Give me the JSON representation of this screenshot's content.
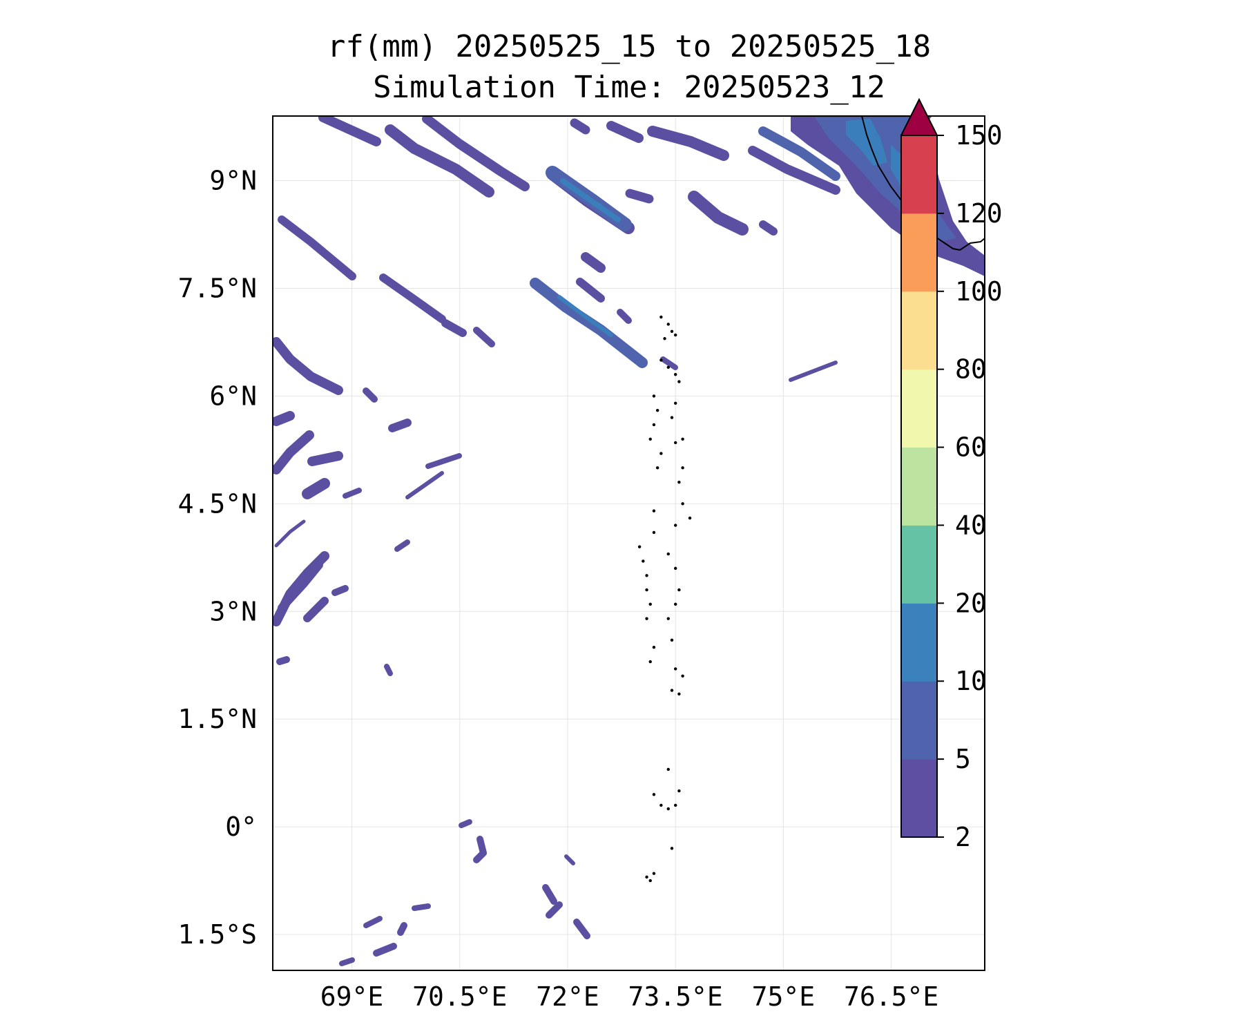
{
  "title": {
    "line1": "rf(mm) 20250525_15 to 20250525_18",
    "line2": "Simulation Time: 20250523_12"
  },
  "map": {
    "lat_range": [
      -2.0,
      9.9
    ],
    "lon_range": [
      67.9,
      77.8
    ],
    "lat_ticks": [
      {
        "value": 9.0,
        "label": "9°N"
      },
      {
        "value": 7.5,
        "label": "7.5°N"
      },
      {
        "value": 6.0,
        "label": "6°N"
      },
      {
        "value": 4.5,
        "label": "4.5°N"
      },
      {
        "value": 3.0,
        "label": "3°N"
      },
      {
        "value": 1.5,
        "label": "1.5°N"
      },
      {
        "value": 0.0,
        "label": "0°"
      },
      {
        "value": -1.5,
        "label": "1.5°S"
      }
    ],
    "lon_ticks": [
      {
        "value": 69.0,
        "label": "69°E"
      },
      {
        "value": 70.5,
        "label": "70.5°E"
      },
      {
        "value": 72.0,
        "label": "72°E"
      },
      {
        "value": 73.5,
        "label": "73.5°E"
      },
      {
        "value": 75.0,
        "label": "75°E"
      },
      {
        "value": 76.5,
        "label": "76.5°E"
      }
    ],
    "gridlines": true,
    "features": [
      "rain bands oriented NW-SE",
      "Maldives atolls dotted outline",
      "SW India coastline top-right"
    ]
  },
  "colorbar": {
    "extend": "max",
    "levels": [
      2,
      5,
      10,
      20,
      40,
      60,
      80,
      100,
      120,
      150
    ],
    "tick_labels": [
      "2",
      "5",
      "10",
      "20",
      "40",
      "60",
      "80",
      "100",
      "120",
      "150"
    ],
    "colors": [
      "#5e4fa2",
      "#4f64ad",
      "#3b82bd",
      "#66c2a5",
      "#bde3a0",
      "#f2f7ae",
      "#fbde8f",
      "#f99d59",
      "#d6404f"
    ],
    "over_color": "#9e0142"
  },
  "colors": {
    "rain_light": "#5a4fa0",
    "rain_mid": "#4f64ad",
    "rain_heavy": "#3a7fbb",
    "grid": "#e4e4e4"
  }
}
